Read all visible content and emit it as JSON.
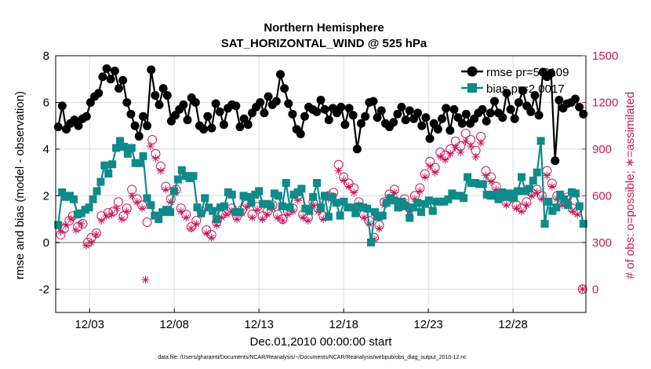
{
  "chart_data": {
    "type": "line",
    "title": "Northern Hemisphere",
    "subtitle": "SAT_HORIZONTAL_WIND @ 525 hPa",
    "xlabel": "Dec.01,2010 00:00:00 start",
    "ylabel": "rmse and bias (model - observation)",
    "ylabel_right": "# of obs: o=possible; ∗=assimilated",
    "xlim": [
      1,
      32.3
    ],
    "ylim": [
      -3,
      8
    ],
    "ylim_right": [
      -150,
      1500
    ],
    "x_ticks": [
      3,
      8,
      13,
      18,
      23,
      28
    ],
    "x_tick_labels": [
      "12/03",
      "12/08",
      "12/13",
      "12/18",
      "12/23",
      "12/28"
    ],
    "y_ticks": [
      -2,
      0,
      2,
      4,
      6,
      8
    ],
    "y_tick_labels": [
      "-2",
      "0",
      "2",
      "4",
      "6",
      "8"
    ],
    "y_right_ticks": [
      0,
      300,
      600,
      900,
      1200,
      1500
    ],
    "y_right_tick_labels": [
      "0",
      "300",
      "600",
      "900",
      "1200",
      "1500"
    ],
    "grid": true,
    "legend_position": "top-right",
    "footnote": "data file: /Users/gharamti/Documents/NCAR/Reanalysis/~/Documents/NCAR/Reanalysis/webpub/obs_diag_output_2010-12.nc",
    "colors": {
      "rmse": "#000000",
      "bias": "#0e8a8a",
      "obs": "#c8185a",
      "zero_line": "#b0b0b0",
      "grid": "#d9d9d9"
    },
    "series": [
      {
        "name": "rmse pr=5.6109",
        "axis": "left",
        "values": [
          4.95,
          5.85,
          4.85,
          5.1,
          5.25,
          5.0,
          5.3,
          5.4,
          6.0,
          6.25,
          6.4,
          7.1,
          7.45,
          7.0,
          7.35,
          6.6,
          6.95,
          6.0,
          5.5,
          5.0,
          4.55,
          5.4,
          5.0,
          7.4,
          6.3,
          5.9,
          6.6,
          6.3,
          5.2,
          5.45,
          5.7,
          5.9,
          5.25,
          6.2,
          6.0,
          5.0,
          4.85,
          5.4,
          4.9,
          5.95,
          5.6,
          5.05,
          5.75,
          5.9,
          5.85,
          4.95,
          5.3,
          5.05,
          5.55,
          5.8,
          6.0,
          5.55,
          6.25,
          5.9,
          6.05,
          7.2,
          6.6,
          5.95,
          5.5,
          4.85,
          4.65,
          5.4,
          5.8,
          5.7,
          5.6,
          6.1,
          5.7,
          5.25,
          5.75,
          5.55,
          5.8,
          5.05,
          5.75,
          5.45,
          4.0,
          5.1,
          5.4,
          6.0,
          6.05,
          5.35,
          5.65,
          5.1,
          4.95,
          5.15,
          5.5,
          5.8,
          5.25,
          5.65,
          5.3,
          5.55,
          5.0,
          5.35,
          4.45,
          5.1,
          4.85,
          5.3,
          5.75,
          4.8,
          5.7,
          5.35,
          5.1,
          5.5,
          5.1,
          5.3,
          5.55,
          5.7,
          5.2,
          5.55,
          6.05,
          5.55,
          5.35,
          6.4,
          5.7,
          5.3,
          6.0,
          6.5,
          5.85,
          5.6,
          6.3,
          5.45,
          7.3,
          7.1,
          7.25,
          3.5,
          6.1,
          5.75,
          5.95,
          6.0,
          6.15,
          5.8,
          5.5
        ]
      },
      {
        "name": "bias pr=2.0017",
        "axis": "left",
        "values": [
          0.75,
          2.15,
          1.95,
          2.0,
          1.85,
          1.2,
          1.25,
          1.4,
          1.5,
          1.85,
          2.2,
          2.6,
          3.3,
          2.95,
          3.35,
          4.05,
          4.35,
          4.1,
          3.8,
          4.05,
          3.4,
          3.4,
          3.7,
          1.9,
          1.6,
          1.15,
          1.0,
          1.3,
          1.4,
          1.3,
          2.2,
          2.7,
          3.1,
          2.85,
          2.75,
          2.85,
          1.5,
          1.25,
          1.9,
          1.5,
          1.35,
          1.0,
          1.5,
          1.55,
          2.15,
          2.05,
          1.3,
          1.3,
          2.0,
          1.95,
          1.7,
          2.05,
          2.2,
          1.65,
          1.65,
          1.55,
          2.1,
          2.0,
          1.55,
          2.55,
          1.5,
          2.05,
          2.15,
          2.3,
          1.45,
          1.35,
          1.95,
          2.55,
          1.5,
          2.0,
          1.1,
          1.95,
          1.7,
          1.15,
          1.75,
          1.5,
          1.5,
          1.25,
          1.55,
          1.5,
          1.45,
          0.0,
          1.3,
          1.1,
          1.15,
          1.7,
          1.9,
          1.8,
          1.5,
          1.75,
          1.55,
          1.05,
          1.5,
          1.7,
          1.3,
          1.65,
          1.8,
          1.35,
          1.75,
          1.75,
          1.75,
          1.85,
          2.1,
          2.0,
          2.0,
          1.9,
          2.8,
          2.55,
          2.55,
          2.5,
          2.5,
          2.05,
          2.0,
          2.05,
          1.85,
          2.15,
          1.95,
          2.1,
          1.9,
          2.2,
          2.8,
          2.2,
          2.3,
          2.65,
          3.0,
          4.35,
          0.8,
          1.75,
          1.35,
          1.5,
          2.05,
          1.85,
          1.6,
          2.15,
          2.1,
          1.55,
          0.8
        ]
      }
    ],
    "obs_possible": [
      [
        1.3,
        350
      ],
      [
        1.5,
        390
      ],
      [
        1.8,
        440
      ],
      [
        2.0,
        470
      ],
      [
        2.3,
        400
      ],
      [
        2.6,
        420
      ],
      [
        2.9,
        300
      ],
      [
        3.1,
        330
      ],
      [
        3.4,
        360
      ],
      [
        3.7,
        470
      ],
      [
        4.1,
        490
      ],
      [
        4.4,
        500
      ],
      [
        4.7,
        560
      ],
      [
        5.0,
        470
      ],
      [
        5.2,
        520
      ],
      [
        5.5,
        640
      ],
      [
        5.8,
        580
      ],
      [
        6.1,
        540
      ],
      [
        6.4,
        430
      ],
      [
        6.7,
        960
      ],
      [
        6.9,
        870
      ],
      [
        7.2,
        790
      ],
      [
        7.5,
        660
      ],
      [
        7.8,
        580
      ],
      [
        8.1,
        640
      ],
      [
        8.4,
        520
      ],
      [
        8.7,
        480
      ],
      [
        9.0,
        400
      ],
      [
        9.3,
        440
      ],
      [
        9.6,
        500
      ],
      [
        9.9,
        380
      ],
      [
        10.2,
        350
      ],
      [
        10.5,
        430
      ],
      [
        10.8,
        480
      ],
      [
        11.1,
        500
      ],
      [
        11.4,
        520
      ],
      [
        11.7,
        470
      ],
      [
        12.0,
        510
      ],
      [
        12.3,
        550
      ],
      [
        12.6,
        480
      ],
      [
        12.9,
        530
      ],
      [
        13.2,
        470
      ],
      [
        13.5,
        500
      ],
      [
        13.8,
        540
      ],
      [
        14.1,
        480
      ],
      [
        14.4,
        450
      ],
      [
        14.7,
        500
      ],
      [
        15.0,
        520
      ],
      [
        15.3,
        600
      ],
      [
        15.6,
        480
      ],
      [
        15.9,
        460
      ],
      [
        16.2,
        560
      ],
      [
        16.5,
        520
      ],
      [
        16.8,
        470
      ],
      [
        17.1,
        600
      ],
      [
        17.4,
        620
      ],
      [
        17.7,
        800
      ],
      [
        18.0,
        720
      ],
      [
        18.3,
        680
      ],
      [
        18.6,
        650
      ],
      [
        18.9,
        560
      ],
      [
        19.2,
        480
      ],
      [
        19.5,
        440
      ],
      [
        19.8,
        330
      ],
      [
        20.1,
        410
      ],
      [
        20.4,
        560
      ],
      [
        20.7,
        610
      ],
      [
        21.0,
        640
      ],
      [
        21.3,
        540
      ],
      [
        21.6,
        580
      ],
      [
        21.9,
        520
      ],
      [
        22.2,
        600
      ],
      [
        22.5,
        650
      ],
      [
        22.8,
        740
      ],
      [
        23.1,
        820
      ],
      [
        23.4,
        780
      ],
      [
        23.7,
        880
      ],
      [
        24.0,
        860
      ],
      [
        24.3,
        900
      ],
      [
        24.6,
        950
      ],
      [
        24.9,
        920
      ],
      [
        25.2,
        1000
      ],
      [
        25.5,
        960
      ],
      [
        25.8,
        890
      ],
      [
        26.1,
        980
      ],
      [
        26.4,
        760
      ],
      [
        26.7,
        720
      ],
      [
        27.0,
        660
      ],
      [
        27.3,
        600
      ],
      [
        27.6,
        560
      ],
      [
        27.9,
        600
      ],
      [
        28.2,
        540
      ],
      [
        28.5,
        520
      ],
      [
        28.8,
        560
      ],
      [
        29.1,
        620
      ],
      [
        29.4,
        640
      ],
      [
        29.7,
        600
      ],
      [
        30.0,
        760
      ],
      [
        30.3,
        680
      ],
      [
        30.6,
        600
      ],
      [
        30.9,
        560
      ],
      [
        31.2,
        590
      ],
      [
        31.5,
        520
      ],
      [
        31.8,
        500
      ],
      [
        32.1,
        0
      ]
    ],
    "obs_assimilated": [
      [
        1.3,
        370
      ],
      [
        1.6,
        410
      ],
      [
        1.9,
        450
      ],
      [
        2.2,
        380
      ],
      [
        2.5,
        420
      ],
      [
        2.8,
        280
      ],
      [
        3.1,
        300
      ],
      [
        3.4,
        350
      ],
      [
        3.7,
        440
      ],
      [
        4.0,
        470
      ],
      [
        4.3,
        480
      ],
      [
        4.6,
        520
      ],
      [
        4.9,
        450
      ],
      [
        5.2,
        500
      ],
      [
        5.5,
        600
      ],
      [
        5.8,
        560
      ],
      [
        6.1,
        520
      ],
      [
        6.3,
        60
      ],
      [
        6.6,
        920
      ],
      [
        6.9,
        840
      ],
      [
        7.2,
        760
      ],
      [
        7.5,
        640
      ],
      [
        7.8,
        560
      ],
      [
        8.1,
        620
      ],
      [
        8.4,
        500
      ],
      [
        8.7,
        460
      ],
      [
        9.0,
        390
      ],
      [
        9.3,
        420
      ],
      [
        9.6,
        480
      ],
      [
        9.9,
        360
      ],
      [
        10.2,
        330
      ],
      [
        10.5,
        410
      ],
      [
        10.8,
        460
      ],
      [
        11.1,
        480
      ],
      [
        11.4,
        500
      ],
      [
        11.7,
        450
      ],
      [
        12.0,
        490
      ],
      [
        12.3,
        530
      ],
      [
        12.6,
        460
      ],
      [
        12.9,
        510
      ],
      [
        13.2,
        450
      ],
      [
        13.5,
        480
      ],
      [
        13.8,
        520
      ],
      [
        14.1,
        460
      ],
      [
        14.4,
        440
      ],
      [
        14.7,
        480
      ],
      [
        15.0,
        500
      ],
      [
        15.3,
        570
      ],
      [
        15.6,
        460
      ],
      [
        15.9,
        440
      ],
      [
        16.2,
        540
      ],
      [
        16.5,
        500
      ],
      [
        16.8,
        450
      ],
      [
        17.1,
        580
      ],
      [
        17.4,
        600
      ],
      [
        17.7,
        760
      ],
      [
        18.0,
        700
      ],
      [
        18.3,
        660
      ],
      [
        18.6,
        620
      ],
      [
        18.9,
        540
      ],
      [
        19.2,
        460
      ],
      [
        19.5,
        420
      ],
      [
        19.8,
        320
      ],
      [
        20.1,
        390
      ],
      [
        20.4,
        540
      ],
      [
        20.7,
        590
      ],
      [
        21.0,
        620
      ],
      [
        21.3,
        520
      ],
      [
        21.6,
        560
      ],
      [
        21.9,
        500
      ],
      [
        22.2,
        580
      ],
      [
        22.5,
        630
      ],
      [
        22.8,
        720
      ],
      [
        23.1,
        790
      ],
      [
        23.4,
        750
      ],
      [
        23.7,
        850
      ],
      [
        24.0,
        830
      ],
      [
        24.3,
        870
      ],
      [
        24.6,
        910
      ],
      [
        24.9,
        880
      ],
      [
        25.2,
        950
      ],
      [
        25.5,
        920
      ],
      [
        25.8,
        850
      ],
      [
        26.1,
        940
      ],
      [
        26.4,
        730
      ],
      [
        26.7,
        690
      ],
      [
        27.0,
        640
      ],
      [
        27.3,
        580
      ],
      [
        27.6,
        540
      ],
      [
        27.9,
        580
      ],
      [
        28.2,
        520
      ],
      [
        28.5,
        500
      ],
      [
        28.8,
        540
      ],
      [
        29.1,
        600
      ],
      [
        29.4,
        620
      ],
      [
        29.7,
        580
      ],
      [
        30.0,
        730
      ],
      [
        30.3,
        660
      ],
      [
        30.6,
        580
      ],
      [
        30.9,
        540
      ],
      [
        31.2,
        570
      ],
      [
        31.5,
        500
      ],
      [
        31.8,
        480
      ],
      [
        32.1,
        0
      ]
    ]
  }
}
